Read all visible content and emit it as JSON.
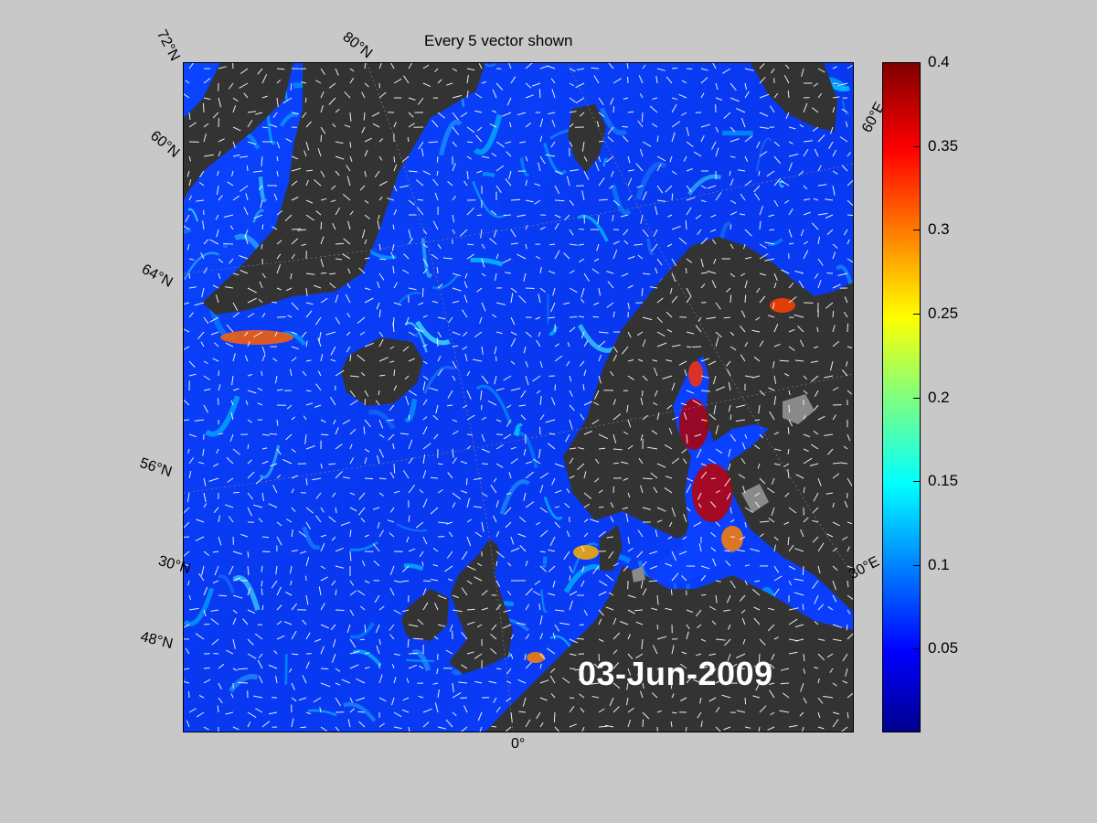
{
  "title": "Every 5 vector shown",
  "date_label": "03-Jun-2009",
  "colorbar": {
    "min": 0,
    "max": 0.4,
    "ticks": [
      "0.4",
      "0.35",
      "0.3",
      "0.25",
      "0.2",
      "0.15",
      "0.1",
      "0.05"
    ],
    "colormap": "jet"
  },
  "graticule": {
    "lat_labels": [
      "72°N",
      "60°N",
      "64°N",
      "56°N",
      "30°N",
      "48°N"
    ],
    "lon_labels": [
      "80°N",
      "60°E",
      "30°E",
      "0°"
    ]
  },
  "colors": {
    "land": "#333333",
    "lake": "#8a8a8a",
    "ocean_base": "#0a3cff",
    "vectors": "#ffffff",
    "background": "#c8c8c8"
  }
}
